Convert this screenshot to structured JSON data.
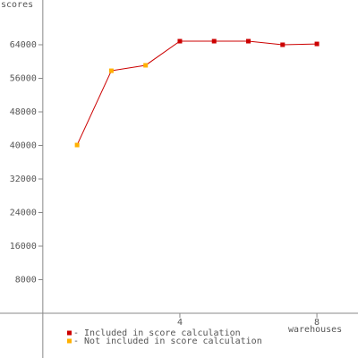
{
  "chart_data": {
    "type": "line",
    "y_label": "scores",
    "x_label": "warehouses",
    "x": [
      1,
      2,
      3,
      4,
      5,
      6,
      7,
      8
    ],
    "series": [
      {
        "color": "#cc0000",
        "values": [
          40100,
          57800,
          59100,
          64850,
          64850,
          64850,
          64000,
          64200
        ],
        "point_colors": [
          "#ffb000",
          "#ffb000",
          "#ffb000",
          "#cc0000",
          "#cc0000",
          "#cc0000",
          "#cc0000",
          "#cc0000"
        ]
      }
    ],
    "legend": [
      {
        "label": "- Included in score calculation",
        "color": "#cc0000"
      },
      {
        "label": "- Not included in score calculation",
        "color": "#ffb000"
      }
    ],
    "xlim": [
      -1.25,
      9.2
    ],
    "ylim": [
      -10667,
      74667
    ],
    "xticks": [
      4,
      8
    ],
    "yticks": [
      8000,
      16000,
      24000,
      32000,
      40000,
      48000,
      56000,
      64000
    ]
  }
}
